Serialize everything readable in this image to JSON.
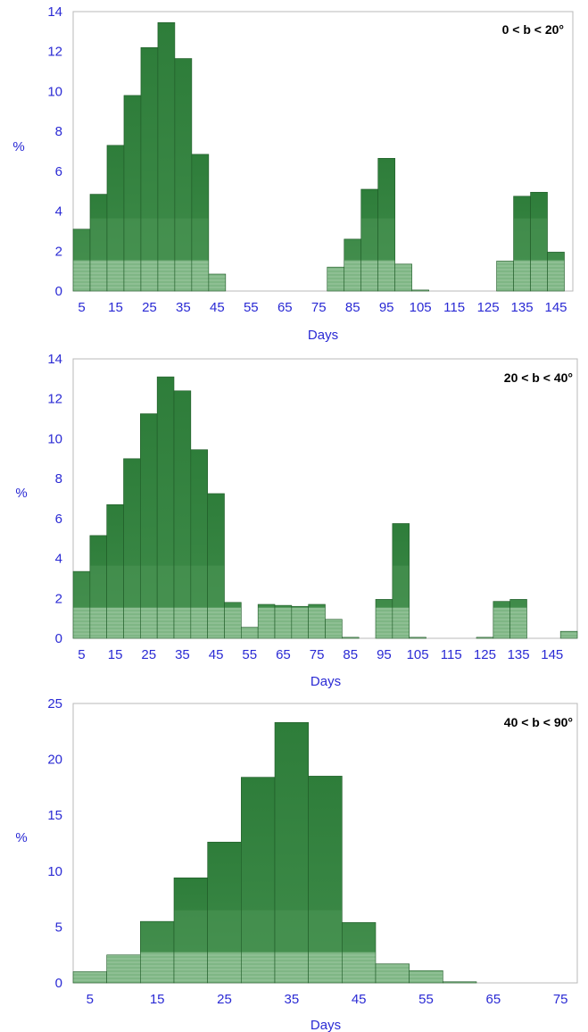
{
  "colors": {
    "axis_text": "#2a2ad4",
    "bar_dark": "#2e7d3a",
    "bar_mid": "#3f8c4a",
    "bar_light": "#7fb685",
    "frame": "#b8b8b8"
  },
  "chart_data": [
    {
      "type": "bar",
      "annotation": "0 < b < 20°",
      "ylabel": "%",
      "xlabel": "Days",
      "x": [
        5,
        10,
        15,
        20,
        25,
        30,
        35,
        40,
        45,
        50,
        55,
        60,
        65,
        70,
        75,
        80,
        85,
        90,
        95,
        100,
        105,
        110,
        115,
        120,
        125,
        130,
        135,
        140,
        145,
        150
      ],
      "values": [
        3.1,
        4.85,
        7.3,
        9.8,
        12.2,
        13.45,
        11.65,
        6.85,
        0.85,
        0,
        0,
        0,
        0,
        0,
        0,
        1.2,
        2.6,
        5.1,
        6.65,
        1.35,
        0.05,
        0,
        0,
        0,
        0,
        1.5,
        4.75,
        4.95,
        1.95,
        0
      ],
      "xticks": [
        "5",
        "15",
        "25",
        "35",
        "45",
        "55",
        "65",
        "75",
        "85",
        "95",
        "105",
        "115",
        "125",
        "135",
        "145"
      ],
      "xtick_values": [
        5,
        15,
        25,
        35,
        45,
        55,
        65,
        75,
        85,
        95,
        105,
        115,
        125,
        135,
        145
      ],
      "yticks": [
        "0",
        "2",
        "4",
        "6",
        "8",
        "10",
        "12",
        "14"
      ],
      "ytick_values": [
        0,
        2,
        4,
        6,
        8,
        10,
        12,
        14
      ],
      "ylim": [
        0,
        14
      ],
      "xlim": [
        2.5,
        150
      ]
    },
    {
      "type": "bar",
      "annotation": "20 < b < 40°",
      "ylabel": "%",
      "xlabel": "Days",
      "x": [
        5,
        10,
        15,
        20,
        25,
        30,
        35,
        40,
        45,
        50,
        55,
        60,
        65,
        70,
        75,
        80,
        85,
        90,
        95,
        100,
        105,
        110,
        115,
        120,
        125,
        130,
        135,
        140,
        145,
        150
      ],
      "values": [
        3.35,
        5.15,
        6.7,
        9.0,
        11.25,
        13.1,
        12.4,
        9.45,
        7.25,
        1.8,
        0.55,
        1.7,
        1.65,
        1.6,
        1.7,
        0.95,
        0.05,
        0,
        1.95,
        5.75,
        0.05,
        0,
        0,
        0,
        0.05,
        1.85,
        1.95,
        0,
        0,
        0.35
      ],
      "xticks": [
        "5",
        "15",
        "25",
        "35",
        "45",
        "55",
        "65",
        "75",
        "85",
        "95",
        "105",
        "115",
        "125",
        "135",
        "145"
      ],
      "xtick_values": [
        5,
        15,
        25,
        35,
        45,
        55,
        65,
        75,
        85,
        95,
        105,
        115,
        125,
        135,
        145
      ],
      "yticks": [
        "0",
        "2",
        "4",
        "6",
        "8",
        "10",
        "12",
        "14"
      ],
      "ytick_values": [
        0,
        2,
        4,
        6,
        8,
        10,
        12,
        14
      ],
      "ylim": [
        0,
        14
      ],
      "xlim": [
        2.5,
        152.5
      ]
    },
    {
      "type": "bar",
      "annotation": "40 < b < 90°",
      "ylabel": "%",
      "xlabel": "Days",
      "x": [
        5,
        10,
        15,
        20,
        25,
        30,
        35,
        40,
        45,
        50,
        55,
        60,
        65,
        70,
        75
      ],
      "values": [
        1.0,
        2.5,
        5.5,
        9.4,
        12.6,
        18.4,
        23.3,
        18.5,
        5.4,
        1.7,
        1.1,
        0.1,
        0,
        0,
        0
      ],
      "xticks": [
        "5",
        "15",
        "25",
        "35",
        "45",
        "55",
        "65",
        "75"
      ],
      "xtick_values": [
        5,
        15,
        25,
        35,
        45,
        55,
        65,
        75
      ],
      "yticks": [
        "0",
        "5",
        "10",
        "15",
        "20",
        "25"
      ],
      "ytick_values": [
        0,
        5,
        10,
        15,
        20,
        25
      ],
      "ylim": [
        0,
        25
      ],
      "xlim": [
        2.5,
        77.5
      ]
    }
  ]
}
